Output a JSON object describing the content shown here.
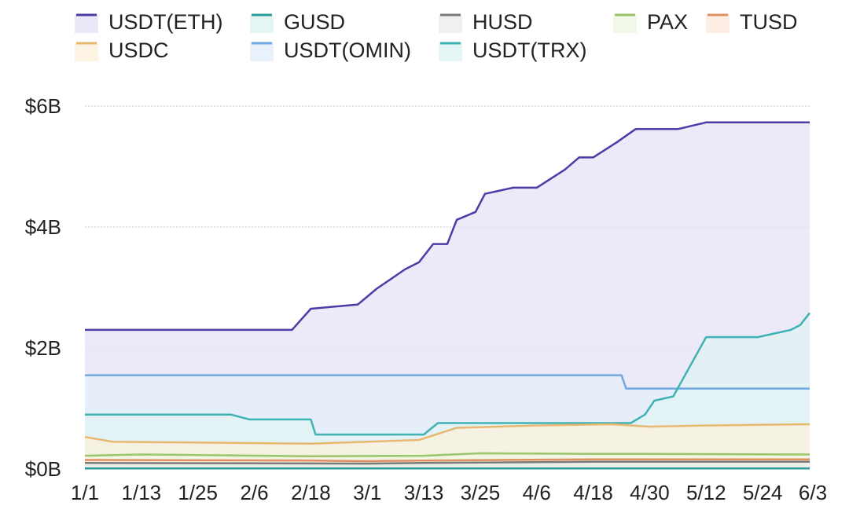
{
  "chart_data": {
    "type": "area",
    "title": "",
    "xlabel": "",
    "ylabel": "",
    "ylim": [
      0,
      6
    ],
    "y_ticks": [
      {
        "value": 0,
        "label": "$0B"
      },
      {
        "value": 2,
        "label": "$2B"
      },
      {
        "value": 4,
        "label": "$4B"
      },
      {
        "value": 6,
        "label": "$6B"
      }
    ],
    "x_ticks": [
      "1/1",
      "1/13",
      "1/25",
      "2/6",
      "2/18",
      "3/1",
      "3/13",
      "3/25",
      "4/6",
      "4/18",
      "4/30",
      "5/12",
      "5/24",
      "6/3"
    ],
    "grid": true,
    "legend_position": "top",
    "series": [
      {
        "name": "USDT(ETH)",
        "color": "#4b3ca6",
        "fill": "#e6e3f6",
        "x": [
          "1/1",
          "2/14",
          "2/18",
          "2/28",
          "3/3",
          "3/9",
          "3/12",
          "3/15",
          "3/18",
          "3/20",
          "3/24",
          "3/26",
          "4/1",
          "4/6",
          "4/12",
          "4/15",
          "4/18",
          "4/23",
          "4/27",
          "5/6",
          "5/12",
          "6/3"
        ],
        "values": [
          2.3,
          2.3,
          2.65,
          2.72,
          2.98,
          3.3,
          3.42,
          3.72,
          3.72,
          4.12,
          4.25,
          4.55,
          4.65,
          4.65,
          4.95,
          5.15,
          5.15,
          5.4,
          5.62,
          5.62,
          5.73,
          5.73
        ]
      },
      {
        "name": "GUSD",
        "color": "#2a9d9a",
        "fill": "#dff2f1",
        "x": [
          "1/1",
          "6/3"
        ],
        "values": [
          0.01,
          0.01
        ]
      },
      {
        "name": "HUSD",
        "color": "#7a7a7a",
        "fill": "#ececec",
        "x": [
          "1/1",
          "3/1",
          "3/13",
          "4/18",
          "6/3"
        ],
        "values": [
          0.1,
          0.09,
          0.1,
          0.12,
          0.12
        ]
      },
      {
        "name": "PAX",
        "color": "#9bc56a",
        "fill": "#eef6e4",
        "x": [
          "1/1",
          "1/13",
          "2/18",
          "3/13",
          "3/25",
          "4/18",
          "4/30",
          "6/3"
        ],
        "values": [
          0.22,
          0.24,
          0.21,
          0.22,
          0.26,
          0.25,
          0.25,
          0.24
        ]
      },
      {
        "name": "TUSD",
        "color": "#e09060",
        "fill": "#fbeadd",
        "x": [
          "1/1",
          "2/18",
          "3/1",
          "3/13",
          "4/18",
          "6/3"
        ],
        "values": [
          0.15,
          0.14,
          0.13,
          0.14,
          0.16,
          0.16
        ]
      },
      {
        "name": "USDC",
        "color": "#e8b870",
        "fill": "#fbf0dc",
        "x": [
          "1/1",
          "1/7",
          "2/18",
          "3/12",
          "3/20",
          "4/6",
          "4/22",
          "4/30",
          "5/12",
          "6/3"
        ],
        "values": [
          0.53,
          0.45,
          0.42,
          0.48,
          0.68,
          0.72,
          0.74,
          0.7,
          0.72,
          0.74
        ]
      },
      {
        "name": "USDT(OMIN)",
        "color": "#6fa8e0",
        "fill": "#e4eff9",
        "x": [
          "1/1",
          "4/24",
          "4/25",
          "6/3"
        ],
        "values": [
          1.55,
          1.55,
          1.33,
          1.33
        ]
      },
      {
        "name": "USDT(TRX)",
        "color": "#3fb3b3",
        "fill": "#e0f3f3",
        "x": [
          "1/1",
          "2/1",
          "2/5",
          "2/18",
          "2/19",
          "3/13",
          "3/16",
          "4/26",
          "4/29",
          "5/1",
          "5/5",
          "5/12",
          "5/23",
          "5/30",
          "6/1",
          "6/3"
        ],
        "values": [
          0.9,
          0.9,
          0.82,
          0.82,
          0.57,
          0.57,
          0.76,
          0.76,
          0.9,
          1.13,
          1.2,
          2.18,
          2.18,
          2.3,
          2.38,
          2.58
        ]
      }
    ]
  }
}
